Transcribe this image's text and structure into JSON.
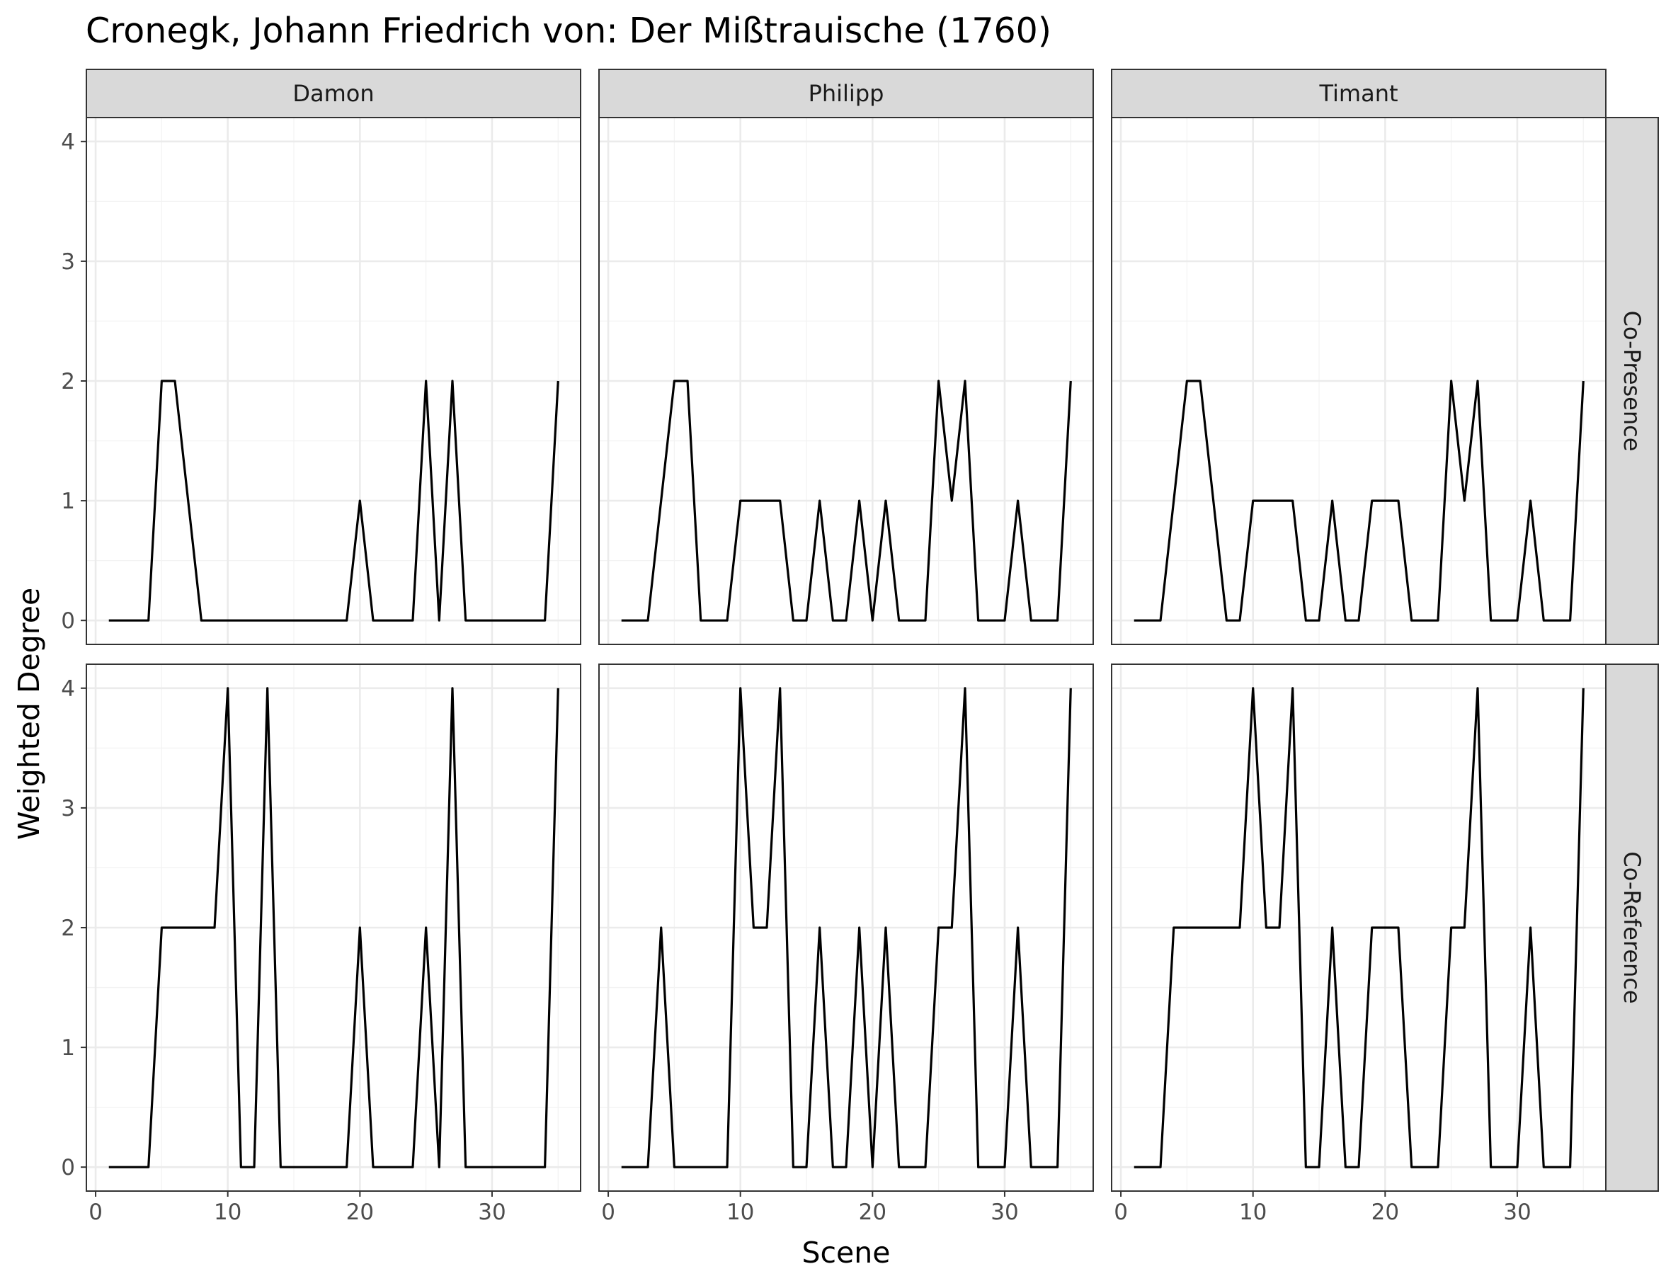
{
  "chart_data": {
    "type": "line",
    "title": "Cronegk, Johann Friedrich von: Der Mißtrauische (1760)",
    "xlabel": "Scene",
    "ylabel": "Weighted Degree",
    "xlim": [
      -0.7,
      36.7
    ],
    "ylim": [
      -0.2,
      4.2
    ],
    "x_ticks": [
      0,
      10,
      20,
      30
    ],
    "y_ticks": [
      0,
      1,
      2,
      3,
      4
    ],
    "columns": [
      "Damon",
      "Philipp",
      "Timant"
    ],
    "rows": [
      "Co-Presence",
      "Co-Reference"
    ],
    "grid": true,
    "legend": "none",
    "x": [
      1,
      2,
      3,
      4,
      5,
      6,
      7,
      8,
      9,
      10,
      11,
      12,
      13,
      14,
      15,
      16,
      17,
      18,
      19,
      20,
      21,
      22,
      23,
      24,
      25,
      26,
      27,
      28,
      29,
      30,
      31,
      32,
      33,
      34,
      35
    ],
    "panels": [
      {
        "row": "Co-Presence",
        "column": "Damon",
        "values": [
          0,
          0,
          0,
          0,
          2,
          2,
          1,
          0,
          0,
          0,
          0,
          0,
          0,
          0,
          0,
          0,
          0,
          0,
          0,
          1,
          0,
          0,
          0,
          0,
          2,
          0,
          2,
          0,
          0,
          0,
          0,
          0,
          0,
          0,
          2
        ]
      },
      {
        "row": "Co-Presence",
        "column": "Philipp",
        "values": [
          0,
          0,
          0,
          1,
          2,
          2,
          0,
          0,
          0,
          1,
          1,
          1,
          1,
          0,
          0,
          1,
          0,
          0,
          1,
          0,
          1,
          0,
          0,
          0,
          2,
          1,
          2,
          0,
          0,
          0,
          1,
          0,
          0,
          0,
          2
        ]
      },
      {
        "row": "Co-Presence",
        "column": "Timant",
        "values": [
          0,
          0,
          0,
          1,
          2,
          2,
          1,
          0,
          0,
          1,
          1,
          1,
          1,
          0,
          0,
          1,
          0,
          0,
          1,
          1,
          1,
          0,
          0,
          0,
          2,
          1,
          2,
          0,
          0,
          0,
          1,
          0,
          0,
          0,
          2
        ]
      },
      {
        "row": "Co-Reference",
        "column": "Damon",
        "values": [
          0,
          0,
          0,
          0,
          2,
          2,
          2,
          2,
          2,
          4,
          0,
          0,
          4,
          0,
          0,
          0,
          0,
          0,
          0,
          2,
          0,
          0,
          0,
          0,
          2,
          0,
          4,
          0,
          0,
          0,
          0,
          0,
          0,
          0,
          4
        ]
      },
      {
        "row": "Co-Reference",
        "column": "Philipp",
        "values": [
          0,
          0,
          0,
          2,
          0,
          0,
          0,
          0,
          0,
          4,
          2,
          2,
          4,
          0,
          0,
          2,
          0,
          0,
          2,
          0,
          2,
          0,
          0,
          0,
          2,
          2,
          4,
          0,
          0,
          0,
          2,
          0,
          0,
          0,
          4
        ]
      },
      {
        "row": "Co-Reference",
        "column": "Timant",
        "values": [
          0,
          0,
          0,
          2,
          2,
          2,
          2,
          2,
          2,
          4,
          2,
          2,
          4,
          0,
          0,
          2,
          0,
          0,
          2,
          2,
          2,
          0,
          0,
          0,
          2,
          2,
          4,
          0,
          0,
          0,
          2,
          0,
          0,
          0,
          4
        ]
      }
    ]
  }
}
